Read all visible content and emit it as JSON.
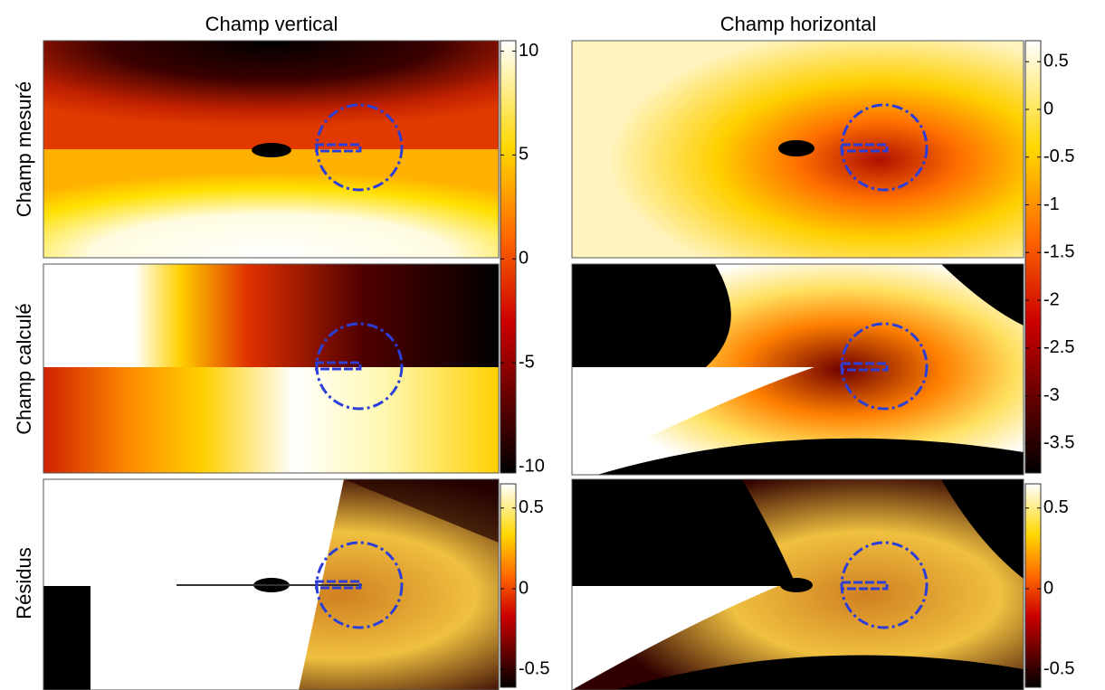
{
  "chart_data": {
    "type": "heatmap",
    "column_titles": [
      "Champ vertical",
      "Champ horizontal"
    ],
    "row_labels": [
      "Champ mesuré",
      "Champ calculé",
      "Résidus"
    ],
    "colorbars": [
      {
        "ylim": [
          -10.3,
          10.5
        ],
        "yticks": [
          -10,
          -5,
          0,
          5,
          10
        ]
      },
      {
        "ylim": [
          -3.81,
          0.72
        ],
        "yticks": [
          -3.5,
          -3,
          -2.5,
          -2,
          -1.5,
          -1,
          -0.5,
          0,
          0.5
        ]
      },
      {
        "ylim": [
          -0.61,
          0.65
        ],
        "yticks": [
          -0.5,
          0,
          0.5
        ]
      },
      {
        "ylim": [
          -0.61,
          0.65
        ],
        "yticks": [
          -0.5,
          0,
          0.5
        ]
      }
    ]
  }
}
